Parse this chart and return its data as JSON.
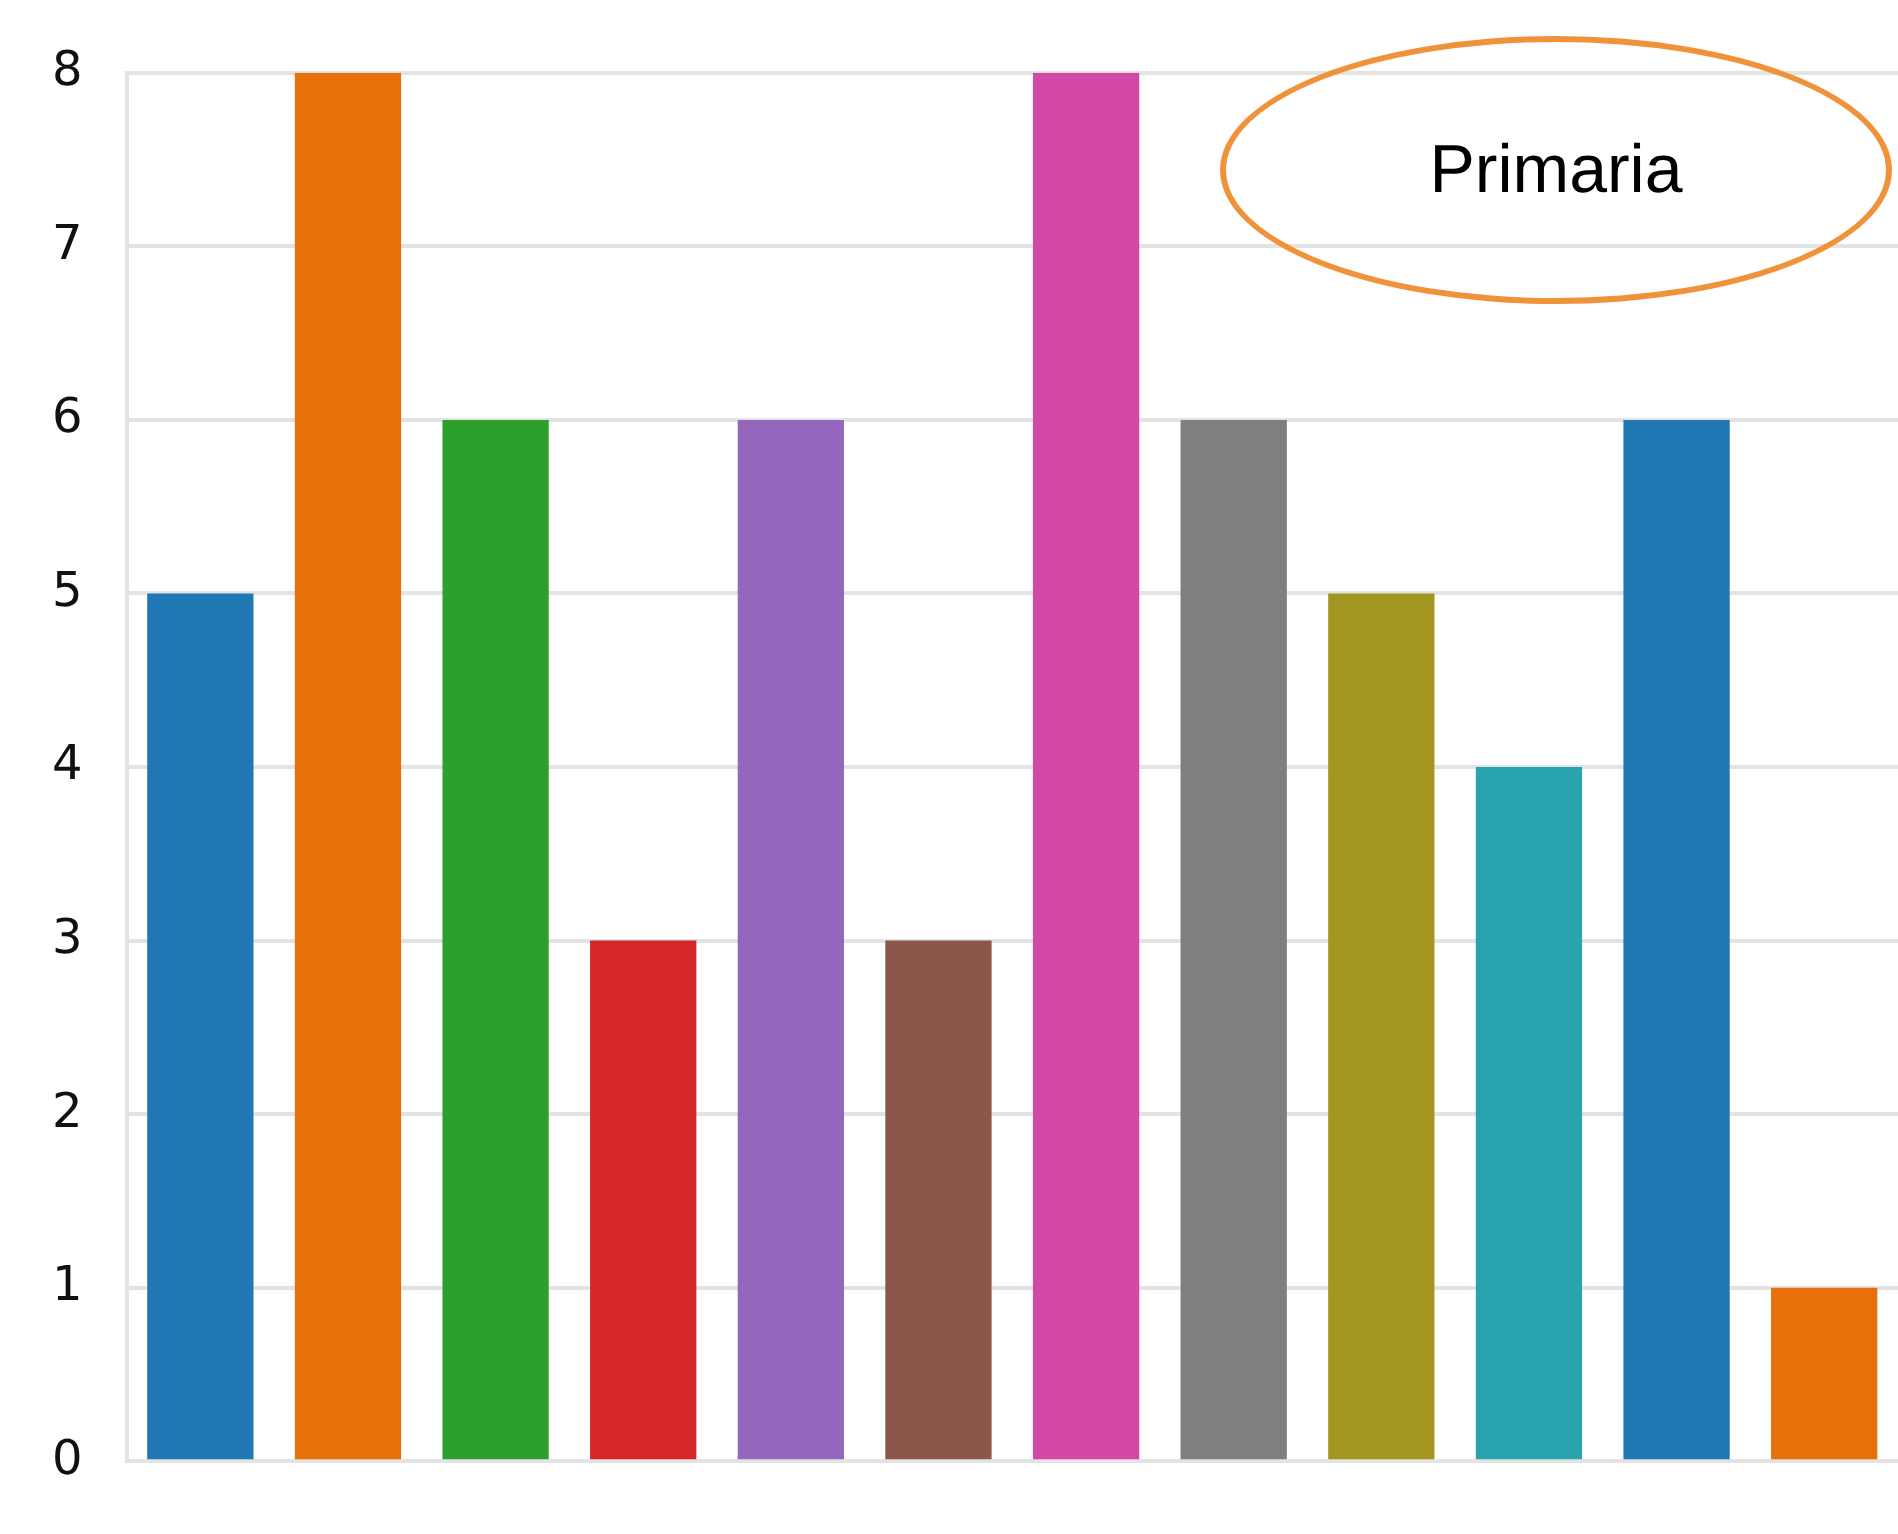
{
  "chart_data": {
    "type": "bar",
    "categories": [
      null,
      null,
      null,
      null,
      null,
      null,
      null,
      null,
      null,
      null,
      null,
      null
    ],
    "values": [
      5,
      8,
      6,
      3,
      6,
      3,
      8,
      6,
      5,
      4,
      6,
      1
    ],
    "colors": [
      "#1f77b4",
      "#e8700a",
      "#2ca02c",
      "#d62728",
      "#9467bd",
      "#8c564b",
      "#d347a5",
      "#7f7f7f",
      "#a29620",
      "#29a3ad",
      "#1f77b4",
      "#e8700a"
    ],
    "ylim": [
      0,
      8
    ],
    "yticks": [
      0,
      1,
      2,
      3,
      4,
      5,
      6,
      7,
      8
    ],
    "grid": "y",
    "tick_labels": "y",
    "legend": false,
    "annotations": [
      "Primaria"
    ]
  }
}
